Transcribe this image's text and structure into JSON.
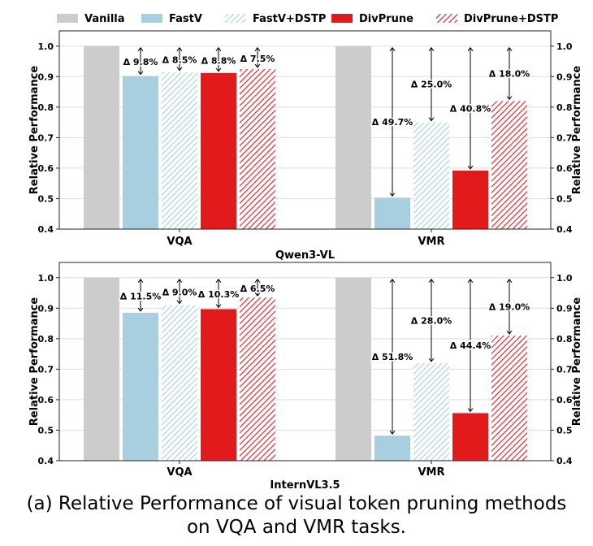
{
  "colors": {
    "vanilla": "#cccccc",
    "fastv": "#a8cfe0",
    "fastv_dstp_hatch": "#a8cfe0",
    "divprune": "#e31a1c",
    "divprune_dstp_hatch": "#e31a1c",
    "grid": "#dddddd",
    "axis": "#222222",
    "arrow": "#000000"
  },
  "legend": {
    "items": [
      {
        "label": "Vanilla",
        "style": "vanilla"
      },
      {
        "label": "FastV",
        "style": "fastv"
      },
      {
        "label": "FastV+DSTP",
        "style": "fastv_dstp"
      },
      {
        "label": "DivPrune",
        "style": "divprune"
      },
      {
        "label": "DivPrune+DSTP",
        "style": "divprune_dstp"
      }
    ]
  },
  "caption": {
    "line1": "(a) Relative Performance of visual token pruning methods",
    "line2": "on VQA and VMR tasks."
  },
  "chart_data": [
    {
      "type": "bar",
      "title": "Qwen3-VL",
      "xlabel": "Qwen3-VL",
      "ylabel": "Relative Performance",
      "ylim": [
        0.4,
        1.05
      ],
      "yticks": [
        "0.4",
        "0.5",
        "0.6",
        "0.7",
        "0.8",
        "0.9",
        "1.0"
      ],
      "categories": [
        "VQA",
        "VMR"
      ],
      "series": [
        {
          "name": "Vanilla",
          "style": "vanilla",
          "values": [
            1.0,
            1.0
          ]
        },
        {
          "name": "FastV",
          "style": "fastv",
          "values": [
            0.902,
            0.503
          ]
        },
        {
          "name": "FastV+DSTP",
          "style": "fastv_dstp",
          "values": [
            0.915,
            0.75
          ]
        },
        {
          "name": "DivPrune",
          "style": "divprune",
          "values": [
            0.912,
            0.592
          ]
        },
        {
          "name": "DivPrune+DSTP",
          "style": "divprune_dstp",
          "values": [
            0.925,
            0.82
          ]
        }
      ],
      "annotations": [
        [
          "Δ 9.8%",
          "Δ 8.5%",
          "Δ 8.8%",
          "Δ 7.5%"
        ],
        [
          "Δ 49.7%",
          "Δ 25.0%",
          "Δ 40.8%",
          "Δ 18.0%"
        ]
      ]
    },
    {
      "type": "bar",
      "title": "InternVL3.5",
      "xlabel": "InternVL3.5",
      "ylabel": "Relative Performance",
      "ylim": [
        0.4,
        1.05
      ],
      "yticks": [
        "0.4",
        "0.5",
        "0.6",
        "0.7",
        "0.8",
        "0.9",
        "1.0"
      ],
      "categories": [
        "VQA",
        "VMR"
      ],
      "series": [
        {
          "name": "Vanilla",
          "style": "vanilla",
          "values": [
            1.0,
            1.0
          ]
        },
        {
          "name": "FastV",
          "style": "fastv",
          "values": [
            0.885,
            0.482
          ]
        },
        {
          "name": "FastV+DSTP",
          "style": "fastv_dstp",
          "values": [
            0.91,
            0.72
          ]
        },
        {
          "name": "DivPrune",
          "style": "divprune",
          "values": [
            0.897,
            0.556
          ]
        },
        {
          "name": "DivPrune+DSTP",
          "style": "divprune_dstp",
          "values": [
            0.935,
            0.81
          ]
        }
      ],
      "annotations": [
        [
          "Δ 11.5%",
          "Δ 9.0%",
          "Δ 10.3%",
          "Δ 6.5%"
        ],
        [
          "Δ 51.8%",
          "Δ 28.0%",
          "Δ 44.4%",
          "Δ 19.0%"
        ]
      ]
    }
  ]
}
